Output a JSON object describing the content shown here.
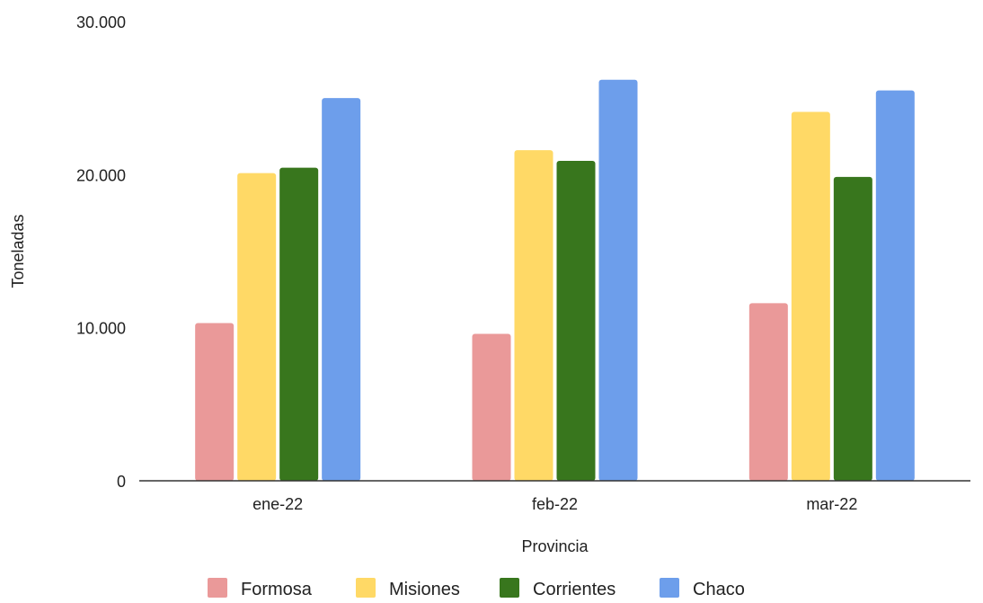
{
  "chart_data": {
    "type": "bar",
    "categories": [
      "ene-22",
      "feb-22",
      "mar-22"
    ],
    "series": [
      {
        "name": "Formosa",
        "values": [
          10300,
          9600,
          11600
        ],
        "color": "#ea9999"
      },
      {
        "name": "Misiones",
        "values": [
          20100,
          21600,
          24100
        ],
        "color": "#ffd966"
      },
      {
        "name": "Corrientes",
        "values": [
          20450,
          20900,
          19850
        ],
        "color": "#38761d"
      },
      {
        "name": "Chaco",
        "values": [
          25000,
          26200,
          25500
        ],
        "color": "#6d9eeb"
      }
    ],
    "title": "",
    "xlabel": "Provincia",
    "ylabel": "Toneladas",
    "ylim": [
      0,
      30000
    ],
    "yticks": [
      0,
      10000,
      20000,
      30000
    ],
    "ytick_labels": [
      "0",
      "10.000",
      "20.000",
      "30.000"
    ],
    "grid": false,
    "legend_position": "bottom",
    "axis_color": "#333333"
  }
}
